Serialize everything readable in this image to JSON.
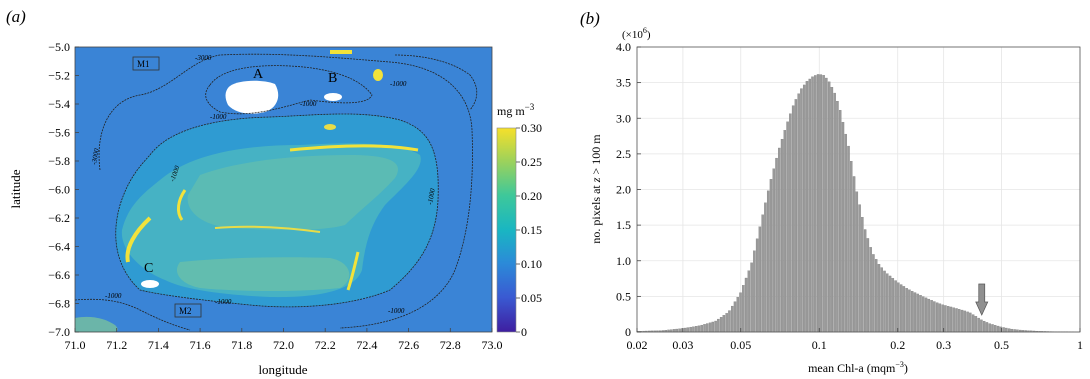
{
  "chart_data": [
    {
      "panel_label": "(a)",
      "type": "heatmap",
      "xlabel": "longitude",
      "ylabel": "latitude",
      "xlim": [
        71.0,
        73.0
      ],
      "ylim": [
        -7.0,
        -5.0
      ],
      "x_ticks": [
        "71.0",
        "71.2",
        "71.4",
        "71.6",
        "71.8",
        "72.0",
        "72.2",
        "72.4",
        "72.6",
        "72.8",
        "73.0"
      ],
      "y_ticks": [
        "-5.0",
        "-5.2",
        "-5.4",
        "-5.6",
        "-5.8",
        "-6.0",
        "-6.2",
        "-6.4",
        "-6.6",
        "-6.8",
        "-7.0"
      ],
      "colorbar": {
        "unit": "mg m",
        "unit_exp": "−3",
        "range": [
          0,
          0.3
        ],
        "ticks": [
          "0.30",
          "0.25",
          "0.20",
          "0.15",
          "0.10",
          "0.05",
          "0"
        ],
        "colormap": [
          "#3e1ea0",
          "#3a5ad2",
          "#2b8bd8",
          "#19b6c2",
          "#3ec89a",
          "#9ed25a",
          "#f6e02a"
        ]
      },
      "contour_label": "-1000",
      "contour_label_deep": "-3000",
      "annotations": [
        "A",
        "B",
        "C",
        "M1",
        "M2"
      ],
      "colors": {
        "background": "#3a84d6",
        "shelf": "#2fa7cd",
        "bank": "#4cb5b5",
        "reef_bright": "#f2e23a",
        "land": "#ffffff",
        "contour": "#222222"
      }
    },
    {
      "panel_label": "(b)",
      "type": "bar",
      "multiplier": "(×10",
      "multiplier_exp": "6",
      "multiplier_close": ")",
      "xlabel": "mean Chl-a (mqm",
      "xlabel_exp": "−3",
      "xlabel_close": ")",
      "ylabel_pre": "no. pixels at ",
      "ylabel_var": "z",
      "ylabel_post": " > 100 m",
      "x_scale": "log",
      "xlim": [
        0.02,
        1
      ],
      "ylim": [
        0,
        4.0
      ],
      "x_tick_values": [
        0.02,
        0.03,
        0.05,
        0.1,
        0.2,
        0.3,
        0.5,
        1
      ],
      "x_ticks": [
        "0.02",
        "0.03",
        "0.05",
        "0.1",
        "0.2",
        "0.3",
        "0.5",
        "1"
      ],
      "y_tick_values": [
        0,
        0.5,
        1.0,
        1.5,
        2.0,
        2.5,
        3.0,
        3.5,
        4.0
      ],
      "y_ticks": [
        "0",
        "0.5",
        "1.0",
        "1.5",
        "2.0",
        "2.5",
        "3.0",
        "3.5",
        "4.0"
      ],
      "arrow_at": 0.42,
      "grid": true,
      "bar_color": "#9a9a9a",
      "histogram_x": [
        0.02,
        0.025,
        0.03,
        0.035,
        0.04,
        0.045,
        0.05,
        0.055,
        0.06,
        0.065,
        0.07,
        0.075,
        0.08,
        0.085,
        0.09,
        0.095,
        0.1,
        0.105,
        0.11,
        0.115,
        0.12,
        0.13,
        0.14,
        0.15,
        0.16,
        0.17,
        0.18,
        0.2,
        0.22,
        0.25,
        0.28,
        0.3,
        0.33,
        0.36,
        0.38,
        0.4,
        0.42,
        0.45,
        0.5,
        0.55,
        0.6,
        0.7,
        0.8,
        1.0
      ],
      "histogram_y": [
        0.01,
        0.02,
        0.05,
        0.09,
        0.15,
        0.28,
        0.55,
        0.95,
        1.55,
        2.1,
        2.55,
        2.9,
        3.2,
        3.4,
        3.52,
        3.59,
        3.62,
        3.6,
        3.5,
        3.35,
        3.15,
        2.6,
        1.95,
        1.45,
        1.12,
        0.95,
        0.84,
        0.7,
        0.6,
        0.5,
        0.42,
        0.38,
        0.34,
        0.3,
        0.27,
        0.22,
        0.17,
        0.12,
        0.07,
        0.04,
        0.025,
        0.01,
        0.005,
        0.0
      ]
    }
  ]
}
